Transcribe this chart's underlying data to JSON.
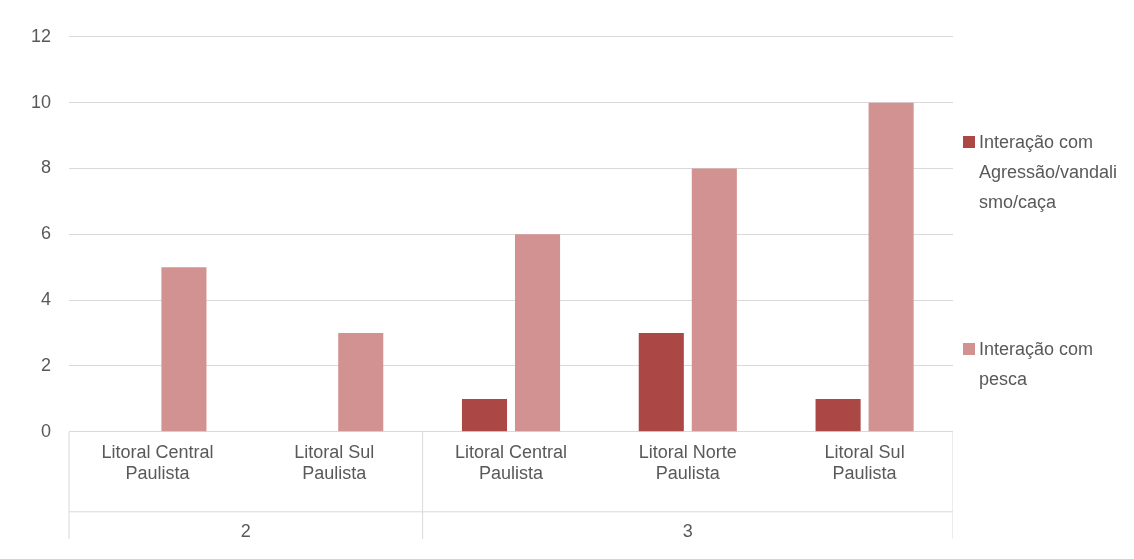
{
  "chart_data": {
    "type": "bar",
    "categories": [
      "Litoral Central Paulista",
      "Litoral Sul Paulista",
      "Litoral Central Paulista",
      "Litoral Norte Paulista",
      "Litoral Sul Paulista"
    ],
    "series": [
      {
        "name": "Interação com Agressão/vandalismo/caça",
        "color": "#ab4745",
        "values": [
          null,
          null,
          1,
          3,
          1
        ]
      },
      {
        "name": "Interação com pesca",
        "color": "#d39292",
        "values": [
          5,
          3,
          6,
          8,
          10
        ]
      }
    ],
    "ylim": [
      0,
      12
    ],
    "yticks": [
      0,
      2,
      4,
      6,
      8,
      10,
      12
    ],
    "grid": "y",
    "legend": "right",
    "annotations": [
      "2",
      "3"
    ]
  }
}
